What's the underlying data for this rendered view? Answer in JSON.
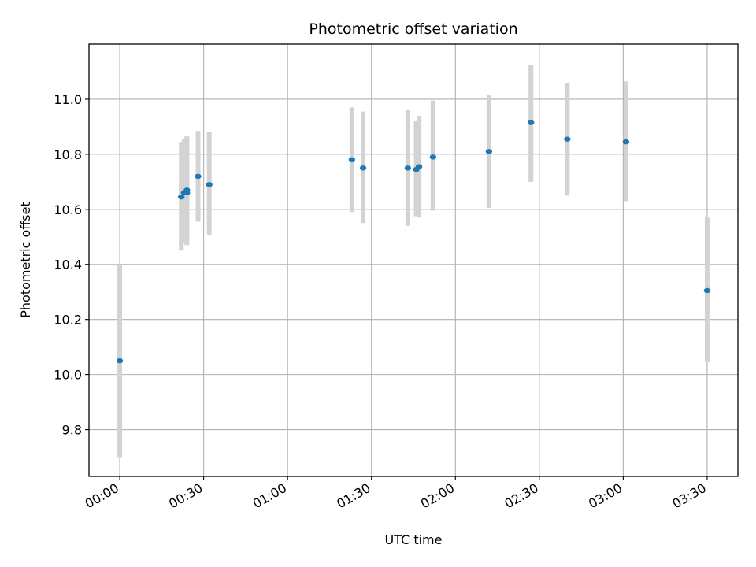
{
  "chart_data": {
    "type": "scatter",
    "title": "Photometric offset variation",
    "xlabel": "UTC time",
    "ylabel": "Photometric offset",
    "x_ticks": [
      "00:00",
      "00:30",
      "01:00",
      "01:30",
      "02:00",
      "02:30",
      "03:00",
      "03:30"
    ],
    "y_ticks": [
      "9.8",
      "10.0",
      "10.2",
      "10.4",
      "10.6",
      "10.8",
      "11.0"
    ],
    "xlim": [
      "23:49",
      "03:41"
    ],
    "ylim": [
      9.63,
      11.2
    ],
    "grid": true,
    "marker_color": "#1f77b4",
    "errorbar_color": "#d3d3d3",
    "points": [
      {
        "time": "00:00",
        "y": 10.05,
        "err_low": 9.7,
        "err_high": 10.4
      },
      {
        "time": "00:22",
        "y": 10.645,
        "err_low": 10.45,
        "err_high": 10.845
      },
      {
        "time": "00:23",
        "y": 10.66,
        "err_low": 10.48,
        "err_high": 10.855
      },
      {
        "time": "00:24",
        "y": 10.66,
        "err_low": 10.47,
        "err_high": 10.86
      },
      {
        "time": "00:24",
        "y": 10.67,
        "err_low": 10.485,
        "err_high": 10.865
      },
      {
        "time": "00:28",
        "y": 10.72,
        "err_low": 10.555,
        "err_high": 10.885
      },
      {
        "time": "00:32",
        "y": 10.69,
        "err_low": 10.505,
        "err_high": 10.88
      },
      {
        "time": "01:23",
        "y": 10.78,
        "err_low": 10.59,
        "err_high": 10.97
      },
      {
        "time": "01:27",
        "y": 10.75,
        "err_low": 10.55,
        "err_high": 10.955
      },
      {
        "time": "01:43",
        "y": 10.75,
        "err_low": 10.54,
        "err_high": 10.96
      },
      {
        "time": "01:46",
        "y": 10.745,
        "err_low": 10.575,
        "err_high": 10.92
      },
      {
        "time": "01:47",
        "y": 10.755,
        "err_low": 10.57,
        "err_high": 10.94
      },
      {
        "time": "01:52",
        "y": 10.79,
        "err_low": 10.595,
        "err_high": 10.995
      },
      {
        "time": "02:12",
        "y": 10.81,
        "err_low": 10.605,
        "err_high": 11.015
      },
      {
        "time": "02:27",
        "y": 10.915,
        "err_low": 10.7,
        "err_high": 11.125
      },
      {
        "time": "02:40",
        "y": 10.855,
        "err_low": 10.65,
        "err_high": 11.06
      },
      {
        "time": "03:01",
        "y": 10.845,
        "err_low": 10.63,
        "err_high": 11.065
      },
      {
        "time": "03:30",
        "y": 10.305,
        "err_low": 10.045,
        "err_high": 10.57
      }
    ]
  }
}
